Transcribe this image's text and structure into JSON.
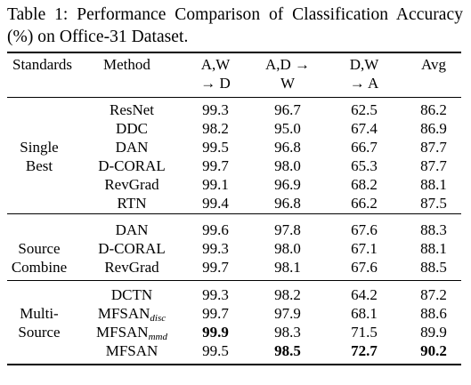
{
  "caption": "Table 1: Performance Comparison of Classification Accuracy (%) on Office-31 Dataset.",
  "header": {
    "standards": "Standards",
    "method": "Method",
    "col1_line1": "A,W",
    "col1_line2": "→ D",
    "col2_line1": "A,D →",
    "col2_line2": "W",
    "col3_line1": "D,W",
    "col3_line2": "→ A",
    "avg": "Avg"
  },
  "groups": [
    {
      "label_lines": [
        "Single",
        "Best"
      ],
      "rows": [
        {
          "method": "ResNet",
          "sub": "",
          "v1": "99.3",
          "v2": "96.7",
          "v3": "62.5",
          "avg": "86.2",
          "bold": []
        },
        {
          "method": "DDC",
          "sub": "",
          "v1": "98.2",
          "v2": "95.0",
          "v3": "67.4",
          "avg": "86.9",
          "bold": []
        },
        {
          "method": "DAN",
          "sub": "",
          "v1": "99.5",
          "v2": "96.8",
          "v3": "66.7",
          "avg": "87.7",
          "bold": []
        },
        {
          "method": "D-CORAL",
          "sub": "",
          "v1": "99.7",
          "v2": "98.0",
          "v3": "65.3",
          "avg": "87.7",
          "bold": []
        },
        {
          "method": "RevGrad",
          "sub": "",
          "v1": "99.1",
          "v2": "96.9",
          "v3": "68.2",
          "avg": "88.1",
          "bold": []
        },
        {
          "method": "RTN",
          "sub": "",
          "v1": "99.4",
          "v2": "96.8",
          "v3": "66.2",
          "avg": "87.5",
          "bold": []
        }
      ]
    },
    {
      "label_lines": [
        "Source",
        "Combine"
      ],
      "rows": [
        {
          "method": "DAN",
          "sub": "",
          "v1": "99.6",
          "v2": "97.8",
          "v3": "67.6",
          "avg": "88.3",
          "bold": []
        },
        {
          "method": "D-CORAL",
          "sub": "",
          "v1": "99.3",
          "v2": "98.0",
          "v3": "67.1",
          "avg": "88.1",
          "bold": []
        },
        {
          "method": "RevGrad",
          "sub": "",
          "v1": "99.7",
          "v2": "98.1",
          "v3": "67.6",
          "avg": "88.5",
          "bold": []
        }
      ]
    },
    {
      "label_lines": [
        "Multi-",
        "Source"
      ],
      "rows": [
        {
          "method": "DCTN",
          "sub": "",
          "v1": "99.3",
          "v2": "98.2",
          "v3": "64.2",
          "avg": "87.2",
          "bold": []
        },
        {
          "method": "MFSAN",
          "sub": "disc",
          "v1": "99.7",
          "v2": "97.9",
          "v3": "68.1",
          "avg": "88.6",
          "bold": []
        },
        {
          "method": "MFSAN",
          "sub": "mmd",
          "v1": "99.9",
          "v2": "98.3",
          "v3": "71.5",
          "avg": "89.9",
          "bold": [
            "v1"
          ]
        },
        {
          "method": "MFSAN",
          "sub": "",
          "v1": "99.5",
          "v2": "98.5",
          "v3": "72.7",
          "avg": "90.2",
          "bold": [
            "v2",
            "v3",
            "avg"
          ]
        }
      ]
    }
  ]
}
